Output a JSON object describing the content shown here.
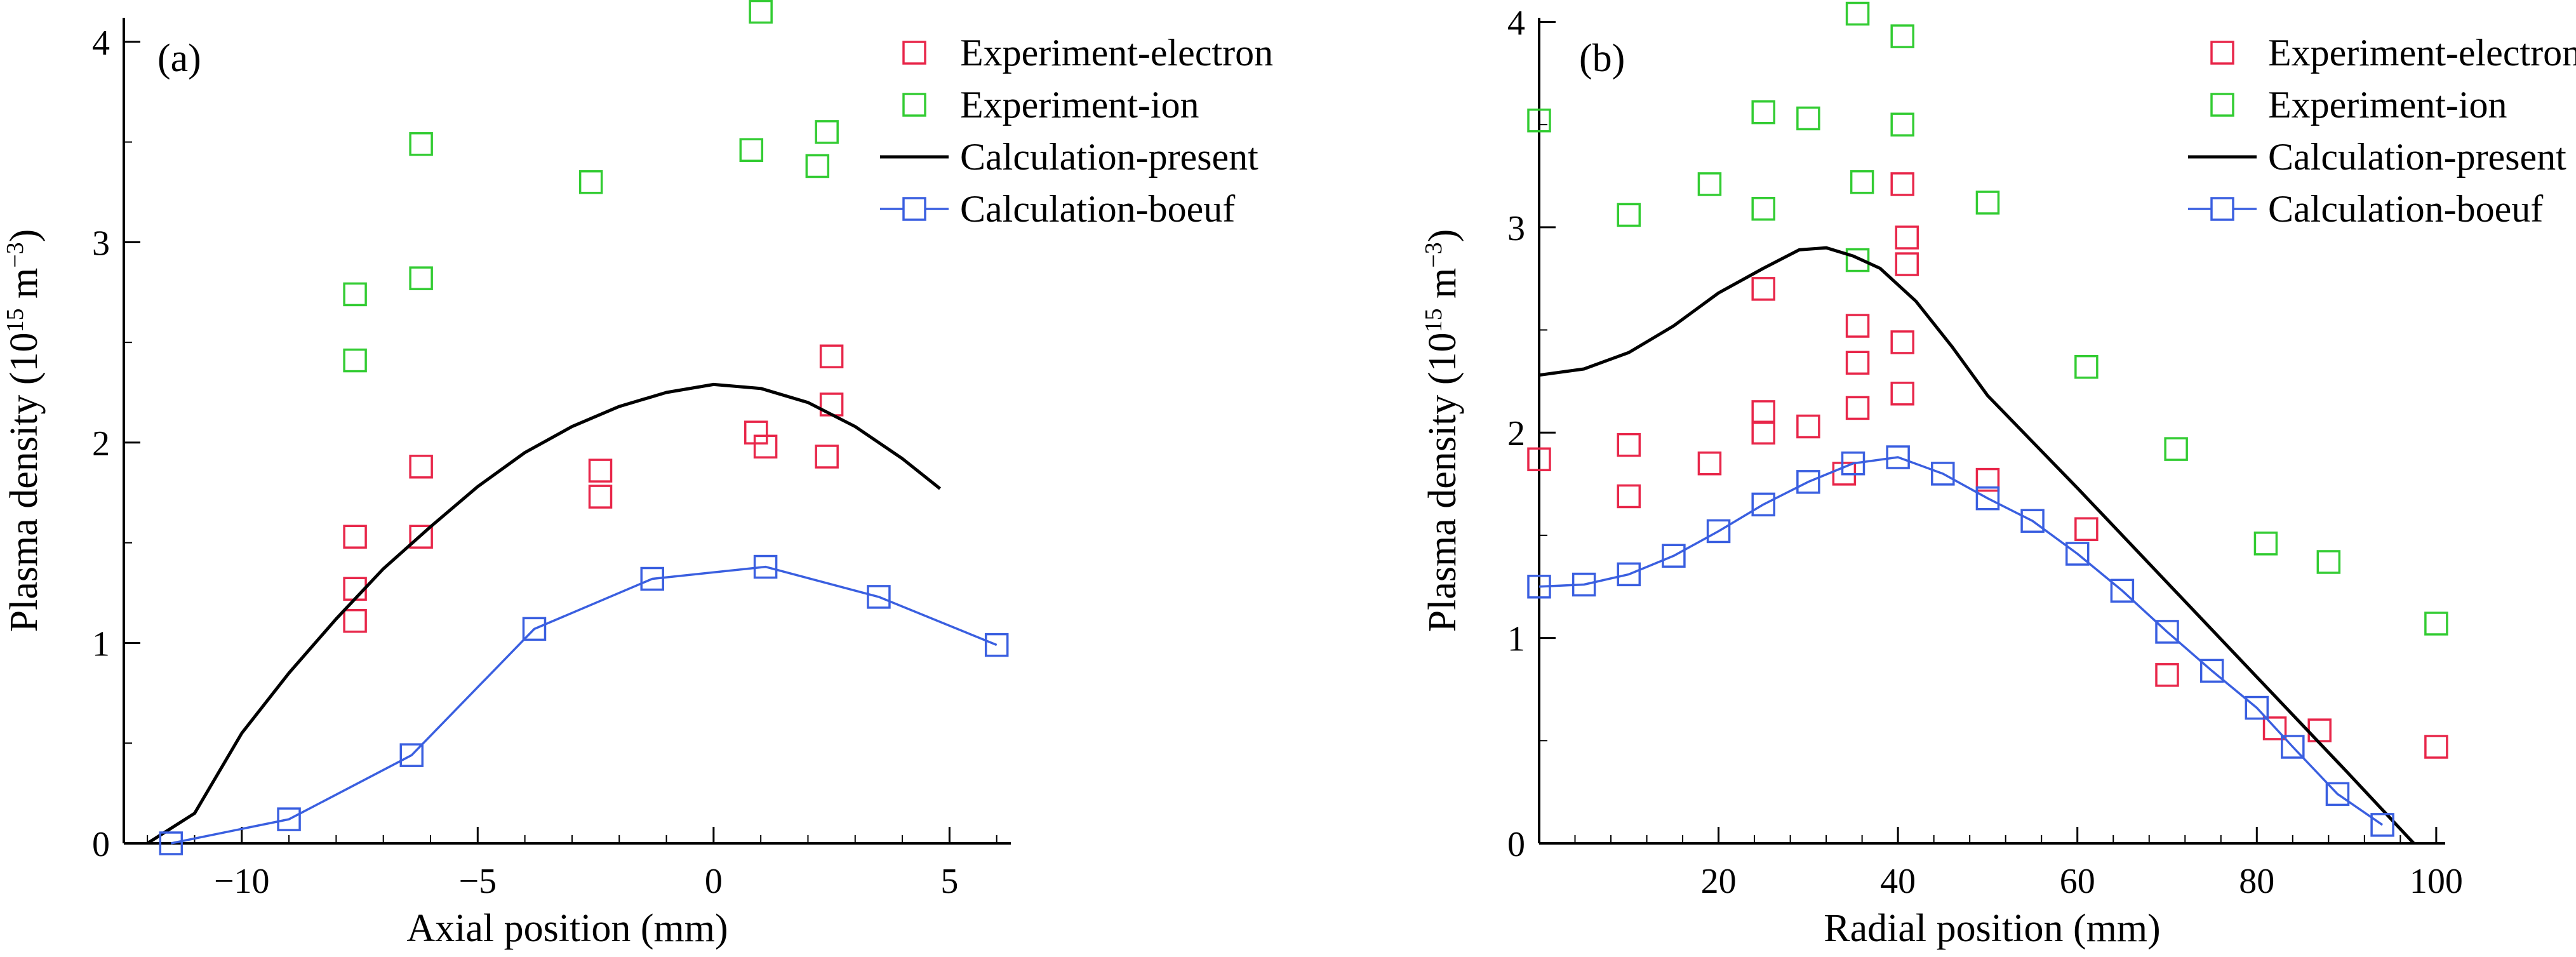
{
  "chart_data": [
    {
      "type": "scatter",
      "panel_label": "(a)",
      "xlabel": "Axial position (mm)",
      "ylabel_main": "Plasma density (10",
      "ylabel_exp1": "15",
      "ylabel_mid": " m",
      "ylabel_exp2": "−3",
      "ylabel_end": ")",
      "xlim": [
        -12.5,
        6.3
      ],
      "ylim": [
        0,
        4.12
      ],
      "xticks": [
        -10,
        -5,
        0,
        5
      ],
      "xtick_labels": [
        "−10",
        "−5",
        "0",
        "5"
      ],
      "yticks": [
        0,
        1,
        2,
        3,
        4
      ],
      "ytick_labels": [
        "0",
        "1",
        "2",
        "3",
        "4"
      ],
      "legend_position": "top-right",
      "series": [
        {
          "name": "Experiment-electron",
          "kind": "markers",
          "color": "#e8274a",
          "points": [
            [
              -7.6,
              1.53
            ],
            [
              -7.6,
              1.27
            ],
            [
              -7.6,
              1.11
            ],
            [
              -6.2,
              1.88
            ],
            [
              -6.2,
              1.53
            ],
            [
              -2.4,
              1.86
            ],
            [
              -2.4,
              1.73
            ],
            [
              0.9,
              2.05
            ],
            [
              1.1,
              1.98
            ],
            [
              2.5,
              2.43
            ],
            [
              2.5,
              2.19
            ],
            [
              2.4,
              1.93
            ]
          ]
        },
        {
          "name": "Experiment-ion",
          "kind": "markers",
          "color": "#33cc33",
          "points": [
            [
              -7.6,
              2.74
            ],
            [
              -7.6,
              2.41
            ],
            [
              -6.2,
              3.49
            ],
            [
              -6.2,
              2.82
            ],
            [
              -2.6,
              3.3
            ],
            [
              0.8,
              3.46
            ],
            [
              1.0,
              4.15
            ],
            [
              2.2,
              3.38
            ],
            [
              2.4,
              3.55
            ]
          ]
        },
        {
          "name": "Calculation-present",
          "kind": "line",
          "color": "#000000",
          "points": [
            [
              -12,
              0
            ],
            [
              -11,
              0.15
            ],
            [
              -10,
              0.55
            ],
            [
              -9,
              0.85
            ],
            [
              -8,
              1.12
            ],
            [
              -7,
              1.37
            ],
            [
              -6,
              1.58
            ],
            [
              -5,
              1.78
            ],
            [
              -4,
              1.95
            ],
            [
              -3,
              2.08
            ],
            [
              -2,
              2.18
            ],
            [
              -1,
              2.25
            ],
            [
              0,
              2.29
            ],
            [
              1,
              2.27
            ],
            [
              2,
              2.2
            ],
            [
              3,
              2.08
            ],
            [
              4,
              1.92
            ],
            [
              4.8,
              1.77
            ]
          ]
        },
        {
          "name": "Calculation-boeuf",
          "kind": "line-markers",
          "color": "#3a5fe0",
          "points": [
            [
              -11.5,
              0
            ],
            [
              -9,
              0.12
            ],
            [
              -6.4,
              0.44
            ],
            [
              -3.8,
              1.07
            ],
            [
              -1.3,
              1.32
            ],
            [
              1.1,
              1.38
            ],
            [
              3.5,
              1.23
            ],
            [
              6,
              0.99
            ]
          ]
        }
      ]
    },
    {
      "type": "scatter",
      "panel_label": "(b)",
      "xlabel": "Radial position (mm)",
      "ylabel_main": "Plasma density (10",
      "ylabel_exp1": "15",
      "ylabel_mid": " m",
      "ylabel_exp2": "−3",
      "ylabel_end": ")",
      "xlim": [
        0,
        101
      ],
      "ylim": [
        0,
        4.02
      ],
      "xticks": [
        20,
        40,
        60,
        80,
        100
      ],
      "xtick_labels": [
        "20",
        "40",
        "60",
        "80",
        "100"
      ],
      "yticks": [
        0,
        1,
        2,
        3,
        4
      ],
      "ytick_labels": [
        "0",
        "1",
        "2",
        "3",
        "4"
      ],
      "legend_position": "top-right",
      "series": [
        {
          "name": "Experiment-electron",
          "kind": "markers",
          "color": "#e8274a",
          "points": [
            [
              0,
              1.87
            ],
            [
              10,
              1.94
            ],
            [
              10,
              1.69
            ],
            [
              19,
              1.85
            ],
            [
              25,
              2.7
            ],
            [
              25,
              2.1
            ],
            [
              25,
              2.0
            ],
            [
              30,
              2.03
            ],
            [
              34,
              1.8
            ],
            [
              35.5,
              2.52
            ],
            [
              35.5,
              2.34
            ],
            [
              35.5,
              2.12
            ],
            [
              40.5,
              3.21
            ],
            [
              41,
              2.95
            ],
            [
              41,
              2.82
            ],
            [
              40.5,
              2.44
            ],
            [
              40.5,
              2.19
            ],
            [
              50,
              1.77
            ],
            [
              61,
              1.53
            ],
            [
              70,
              0.82
            ],
            [
              82,
              0.56
            ],
            [
              87,
              0.55
            ],
            [
              100,
              0.47
            ]
          ]
        },
        {
          "name": "Experiment-ion",
          "kind": "markers",
          "color": "#33cc33",
          "points": [
            [
              0,
              3.52
            ],
            [
              10,
              3.06
            ],
            [
              19,
              3.21
            ],
            [
              25,
              3.56
            ],
            [
              25,
              3.09
            ],
            [
              30,
              3.53
            ],
            [
              35.5,
              4.04
            ],
            [
              36,
              3.22
            ],
            [
              35.5,
              2.84
            ],
            [
              40.5,
              3.93
            ],
            [
              40.5,
              3.5
            ],
            [
              50,
              3.12
            ],
            [
              61,
              2.32
            ],
            [
              71,
              1.92
            ],
            [
              81,
              1.46
            ],
            [
              88,
              1.37
            ],
            [
              100,
              1.07
            ]
          ]
        },
        {
          "name": "Calculation-present",
          "kind": "line",
          "color": "#000000",
          "points": [
            [
              0,
              2.28
            ],
            [
              5,
              2.31
            ],
            [
              10,
              2.39
            ],
            [
              15,
              2.52
            ],
            [
              20,
              2.68
            ],
            [
              25,
              2.8
            ],
            [
              29,
              2.89
            ],
            [
              32,
              2.9
            ],
            [
              35,
              2.86
            ],
            [
              38,
              2.8
            ],
            [
              42,
              2.64
            ],
            [
              46,
              2.42
            ],
            [
              50,
              2.18
            ],
            [
              60,
              1.73
            ],
            [
              70,
              1.27
            ],
            [
              80,
              0.81
            ],
            [
              90,
              0.35
            ],
            [
              97.5,
              0
            ]
          ]
        },
        {
          "name": "Calculation-boeuf",
          "kind": "line-markers",
          "color": "#3a5fe0",
          "points": [
            [
              0,
              1.25
            ],
            [
              5,
              1.26
            ],
            [
              10,
              1.31
            ],
            [
              15,
              1.4
            ],
            [
              20,
              1.52
            ],
            [
              25,
              1.65
            ],
            [
              30,
              1.76
            ],
            [
              35,
              1.85
            ],
            [
              40,
              1.88
            ],
            [
              45,
              1.8
            ],
            [
              50,
              1.68
            ],
            [
              55,
              1.57
            ],
            [
              60,
              1.41
            ],
            [
              65,
              1.23
            ],
            [
              70,
              1.03
            ],
            [
              75,
              0.84
            ],
            [
              80,
              0.66
            ],
            [
              84,
              0.47
            ],
            [
              89,
              0.24
            ],
            [
              94,
              0.09
            ]
          ]
        }
      ]
    }
  ]
}
